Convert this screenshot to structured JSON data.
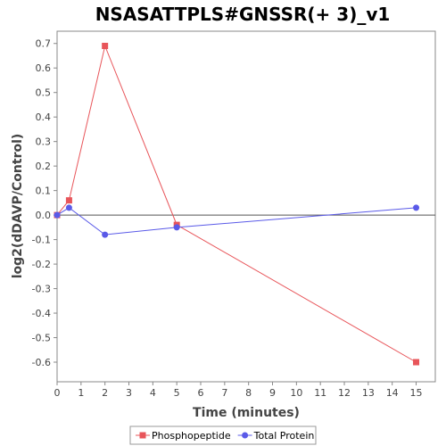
{
  "chart_data": {
    "type": "line",
    "title": "NSASATTPLS#GNSSR(+ 3)_v1",
    "xlabel": "Time (minutes)",
    "ylabel": "log2(dDAVP/Control)",
    "xlim": [
      0,
      15.8
    ],
    "ylim": [
      -0.68,
      0.75
    ],
    "xticks": [
      0,
      1,
      2,
      3,
      4,
      5,
      6,
      7,
      8,
      9,
      10,
      11,
      12,
      13,
      14,
      15
    ],
    "yticks": [
      0.7,
      0.6,
      0.5,
      0.4,
      0.3,
      0.2,
      0.1,
      0.0,
      -0.1,
      -0.2,
      -0.3,
      -0.4,
      -0.5,
      -0.6
    ],
    "ytick_labels": [
      "0.7",
      "0.6",
      "0.5",
      "0.4",
      "0.3",
      "0.2",
      "0.1",
      "0.0",
      "-0.1",
      "-0.2",
      "-0.3",
      "-0.4",
      "-0.5",
      "-0.6"
    ],
    "grid": false,
    "zero_line": true,
    "legend_position": "bottom",
    "series": [
      {
        "name": "Phosphopeptide",
        "color": "#e8555a",
        "marker": "square",
        "x": [
          0,
          0.5,
          2,
          5,
          15
        ],
        "y": [
          0.0,
          0.06,
          0.69,
          -0.04,
          -0.6
        ]
      },
      {
        "name": "Total Protein",
        "color": "#5a5ae8",
        "marker": "circle",
        "x": [
          0,
          0.5,
          2,
          5,
          15
        ],
        "y": [
          0.0,
          0.03,
          -0.08,
          -0.05,
          0.03
        ]
      }
    ]
  }
}
